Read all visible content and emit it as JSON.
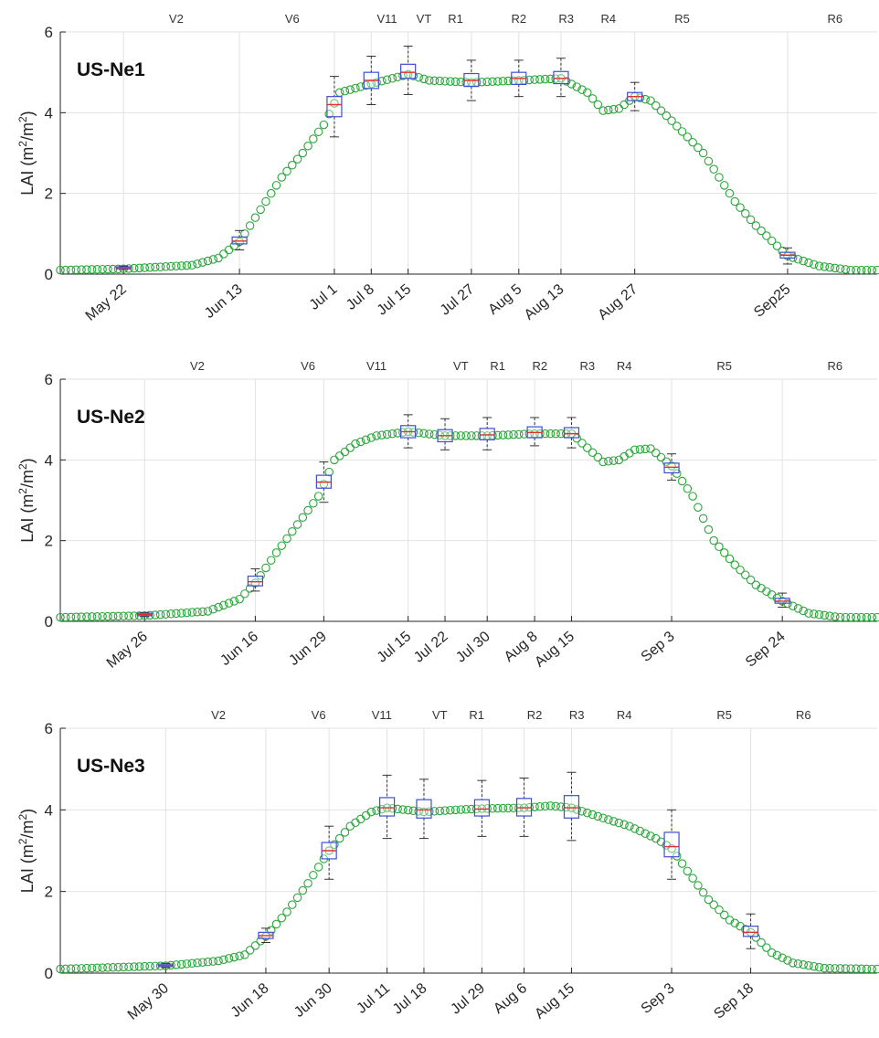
{
  "chart_data": [
    {
      "type": "scatter",
      "site_label": "US-Ne1",
      "ylabel_main": "LAI (m",
      "ylabel_sup1": "2",
      "ylabel_mid": "/m",
      "ylabel_sup2": "2",
      "ylabel_end": ")",
      "xlim": [
        130,
        285
      ],
      "ylim": [
        0,
        6
      ],
      "y_ticks": [
        "0",
        "2",
        "4",
        "6"
      ],
      "y_tick_values": [
        0,
        2,
        4,
        6
      ],
      "grid": true,
      "dates": [
        {
          "label": "May 22",
          "doy": 142
        },
        {
          "label": "Jun 13",
          "doy": 164
        },
        {
          "label": "Jul 1",
          "doy": 182
        },
        {
          "label": "Jul 8",
          "doy": 189
        },
        {
          "label": "Jul 15",
          "doy": 196
        },
        {
          "label": "Jul 27",
          "doy": 208
        },
        {
          "label": "Aug 5",
          "doy": 217
        },
        {
          "label": "Aug 13",
          "doy": 225
        },
        {
          "label": "Aug 27",
          "doy": 239
        },
        {
          "label": "Sep25",
          "doy": 268
        }
      ],
      "stages": [
        {
          "label": "V2",
          "doy": 152
        },
        {
          "label": "V6",
          "doy": 174
        },
        {
          "label": "V11",
          "doy": 192
        },
        {
          "label": "VT",
          "doy": 199
        },
        {
          "label": "R1",
          "doy": 205
        },
        {
          "label": "R2",
          "doy": 217
        },
        {
          "label": "R3",
          "doy": 226
        },
        {
          "label": "R4",
          "doy": 234
        },
        {
          "label": "R5",
          "doy": 248
        },
        {
          "label": "R6",
          "doy": 277
        }
      ],
      "curve": [
        [
          130,
          0.1
        ],
        [
          142,
          0.13
        ],
        [
          155,
          0.22
        ],
        [
          160,
          0.4
        ],
        [
          164,
          0.8
        ],
        [
          168,
          1.6
        ],
        [
          172,
          2.4
        ],
        [
          176,
          3.0
        ],
        [
          180,
          3.7
        ],
        [
          183,
          4.5
        ],
        [
          190,
          4.75
        ],
        [
          196,
          4.95
        ],
        [
          200,
          4.8
        ],
        [
          208,
          4.75
        ],
        [
          217,
          4.8
        ],
        [
          225,
          4.85
        ],
        [
          230,
          4.5
        ],
        [
          233,
          4.05
        ],
        [
          236,
          4.1
        ],
        [
          239,
          4.4
        ],
        [
          242,
          4.3
        ],
        [
          246,
          3.8
        ],
        [
          252,
          3.0
        ],
        [
          258,
          1.8
        ],
        [
          262,
          1.2
        ],
        [
          266,
          0.7
        ],
        [
          268,
          0.45
        ],
        [
          274,
          0.2
        ],
        [
          280,
          0.1
        ],
        [
          285,
          0.1
        ]
      ],
      "boxes": [
        {
          "doy": 142,
          "q1": 0.13,
          "median": 0.16,
          "q3": 0.18,
          "low": 0.12,
          "high": 0.2
        },
        {
          "doy": 164,
          "q1": 0.75,
          "median": 0.82,
          "q3": 0.92,
          "low": 0.6,
          "high": 1.08
        },
        {
          "doy": 182,
          "q1": 3.9,
          "median": 4.2,
          "q3": 4.4,
          "low": 3.4,
          "high": 4.9
        },
        {
          "doy": 189,
          "q1": 4.6,
          "median": 4.8,
          "q3": 5.0,
          "low": 4.2,
          "high": 5.4
        },
        {
          "doy": 196,
          "q1": 4.85,
          "median": 5.0,
          "q3": 5.2,
          "low": 4.45,
          "high": 5.65
        },
        {
          "doy": 208,
          "q1": 4.65,
          "median": 4.8,
          "q3": 4.97,
          "low": 4.3,
          "high": 5.3
        },
        {
          "doy": 217,
          "q1": 4.7,
          "median": 4.85,
          "q3": 5.0,
          "low": 4.4,
          "high": 5.3
        },
        {
          "doy": 225,
          "q1": 4.72,
          "median": 4.85,
          "q3": 5.02,
          "low": 4.4,
          "high": 5.35
        },
        {
          "doy": 239,
          "q1": 4.3,
          "median": 4.4,
          "q3": 4.5,
          "low": 4.05,
          "high": 4.75
        },
        {
          "doy": 268,
          "q1": 0.4,
          "median": 0.47,
          "q3": 0.54,
          "low": 0.25,
          "high": 0.65
        }
      ]
    },
    {
      "type": "scatter",
      "site_label": "US-Ne2",
      "ylabel_main": "LAI (m",
      "ylabel_sup1": "2",
      "ylabel_mid": "/m",
      "ylabel_sup2": "2",
      "ylabel_end": ")",
      "xlim": [
        130,
        285
      ],
      "ylim": [
        0,
        6
      ],
      "y_ticks": [
        "0",
        "2",
        "4",
        "6"
      ],
      "y_tick_values": [
        0,
        2,
        4,
        6
      ],
      "grid": true,
      "dates": [
        {
          "label": "May 26",
          "doy": 146
        },
        {
          "label": "Jun 16",
          "doy": 167
        },
        {
          "label": "Jun 29",
          "doy": 180
        },
        {
          "label": "Jul 15",
          "doy": 196
        },
        {
          "label": "Jul 22",
          "doy": 203
        },
        {
          "label": "Jul 30",
          "doy": 211
        },
        {
          "label": "Aug 8",
          "doy": 220
        },
        {
          "label": "Aug 15",
          "doy": 227
        },
        {
          "label": "Sep 3",
          "doy": 246
        },
        {
          "label": "Sep 24",
          "doy": 267
        }
      ],
      "stages": [
        {
          "label": "V2",
          "doy": 156
        },
        {
          "label": "V6",
          "doy": 177
        },
        {
          "label": "V11",
          "doy": 190
        },
        {
          "label": "VT",
          "doy": 206
        },
        {
          "label": "R1",
          "doy": 213
        },
        {
          "label": "R2",
          "doy": 221
        },
        {
          "label": "R3",
          "doy": 230
        },
        {
          "label": "R4",
          "doy": 237
        },
        {
          "label": "R5",
          "doy": 256
        },
        {
          "label": "R6",
          "doy": 277
        }
      ],
      "curve": [
        [
          130,
          0.1
        ],
        [
          146,
          0.14
        ],
        [
          158,
          0.25
        ],
        [
          164,
          0.55
        ],
        [
          167,
          0.95
        ],
        [
          171,
          1.7
        ],
        [
          175,
          2.4
        ],
        [
          179,
          3.1
        ],
        [
          182,
          4.0
        ],
        [
          186,
          4.4
        ],
        [
          190,
          4.6
        ],
        [
          196,
          4.7
        ],
        [
          203,
          4.6
        ],
        [
          211,
          4.6
        ],
        [
          220,
          4.65
        ],
        [
          227,
          4.65
        ],
        [
          230,
          4.3
        ],
        [
          233,
          3.95
        ],
        [
          236,
          4.0
        ],
        [
          239,
          4.25
        ],
        [
          242,
          4.28
        ],
        [
          246,
          3.85
        ],
        [
          250,
          3.1
        ],
        [
          254,
          2.0
        ],
        [
          258,
          1.4
        ],
        [
          262,
          0.9
        ],
        [
          267,
          0.5
        ],
        [
          272,
          0.2
        ],
        [
          278,
          0.1
        ],
        [
          285,
          0.1
        ]
      ],
      "boxes": [
        {
          "doy": 146,
          "q1": 0.14,
          "median": 0.17,
          "q3": 0.2,
          "low": 0.12,
          "high": 0.22
        },
        {
          "doy": 167,
          "q1": 0.88,
          "median": 0.98,
          "q3": 1.12,
          "low": 0.75,
          "high": 1.3
        },
        {
          "doy": 180,
          "q1": 3.3,
          "median": 3.45,
          "q3": 3.62,
          "low": 2.95,
          "high": 3.95
        },
        {
          "doy": 196,
          "q1": 4.55,
          "median": 4.7,
          "q3": 4.85,
          "low": 4.3,
          "high": 5.12
        },
        {
          "doy": 203,
          "q1": 4.45,
          "median": 4.6,
          "q3": 4.75,
          "low": 4.25,
          "high": 5.02
        },
        {
          "doy": 211,
          "q1": 4.5,
          "median": 4.62,
          "q3": 4.78,
          "low": 4.25,
          "high": 5.05
        },
        {
          "doy": 220,
          "q1": 4.55,
          "median": 4.68,
          "q3": 4.82,
          "low": 4.35,
          "high": 5.05
        },
        {
          "doy": 227,
          "q1": 4.55,
          "median": 4.65,
          "q3": 4.8,
          "low": 4.3,
          "high": 5.05
        },
        {
          "doy": 246,
          "q1": 3.68,
          "median": 3.82,
          "q3": 3.92,
          "low": 3.5,
          "high": 4.15
        },
        {
          "doy": 267,
          "q1": 0.45,
          "median": 0.5,
          "q3": 0.57,
          "low": 0.35,
          "high": 0.7
        }
      ]
    },
    {
      "type": "scatter",
      "site_label": "US-Ne3",
      "ylabel_main": "LAI (m",
      "ylabel_sup1": "2",
      "ylabel_mid": "/m",
      "ylabel_sup2": "2",
      "ylabel_end": ")",
      "xlim": [
        130,
        285
      ],
      "ylim": [
        0,
        6
      ],
      "y_ticks": [
        "0",
        "2",
        "4",
        "6"
      ],
      "y_tick_values": [
        0,
        2,
        4,
        6
      ],
      "grid": true,
      "dates": [
        {
          "label": "May 30",
          "doy": 150
        },
        {
          "label": "Jun 18",
          "doy": 169
        },
        {
          "label": "Jun 30",
          "doy": 181
        },
        {
          "label": "Jul 11",
          "doy": 192
        },
        {
          "label": "Jul 18",
          "doy": 199
        },
        {
          "label": "Jul 29",
          "doy": 210
        },
        {
          "label": "Aug 6",
          "doy": 218
        },
        {
          "label": "Aug 15",
          "doy": 227
        },
        {
          "label": "Sep 3",
          "doy": 246
        },
        {
          "label": "Sep 18",
          "doy": 261
        }
      ],
      "stages": [
        {
          "label": "V2",
          "doy": 160
        },
        {
          "label": "V6",
          "doy": 179
        },
        {
          "label": "V11",
          "doy": 191
        },
        {
          "label": "VT",
          "doy": 202
        },
        {
          "label": "R1",
          "doy": 209
        },
        {
          "label": "R2",
          "doy": 220
        },
        {
          "label": "R3",
          "doy": 228
        },
        {
          "label": "R4",
          "doy": 237
        },
        {
          "label": "R5",
          "doy": 256
        },
        {
          "label": "R6",
          "doy": 271
        }
      ],
      "curve": [
        [
          130,
          0.1
        ],
        [
          150,
          0.18
        ],
        [
          160,
          0.3
        ],
        [
          165,
          0.45
        ],
        [
          169,
          0.9
        ],
        [
          173,
          1.5
        ],
        [
          177,
          2.2
        ],
        [
          181,
          3.0
        ],
        [
          185,
          3.6
        ],
        [
          189,
          3.95
        ],
        [
          192,
          4.05
        ],
        [
          199,
          3.95
        ],
        [
          205,
          4.0
        ],
        [
          210,
          4.03
        ],
        [
          218,
          4.05
        ],
        [
          223,
          4.1
        ],
        [
          227,
          4.05
        ],
        [
          233,
          3.8
        ],
        [
          238,
          3.6
        ],
        [
          243,
          3.3
        ],
        [
          246,
          3.05
        ],
        [
          249,
          2.5
        ],
        [
          253,
          1.8
        ],
        [
          257,
          1.3
        ],
        [
          261,
          1.0
        ],
        [
          265,
          0.5
        ],
        [
          269,
          0.25
        ],
        [
          275,
          0.12
        ],
        [
          285,
          0.1
        ]
      ],
      "boxes": [
        {
          "doy": 150,
          "q1": 0.16,
          "median": 0.19,
          "q3": 0.22,
          "low": 0.14,
          "high": 0.24
        },
        {
          "doy": 169,
          "q1": 0.85,
          "median": 0.92,
          "q3": 1.0,
          "low": 0.75,
          "high": 1.1
        },
        {
          "doy": 181,
          "q1": 2.8,
          "median": 3.0,
          "q3": 3.2,
          "low": 2.3,
          "high": 3.6
        },
        {
          "doy": 192,
          "q1": 3.85,
          "median": 4.05,
          "q3": 4.3,
          "low": 3.3,
          "high": 4.85
        },
        {
          "doy": 199,
          "q1": 3.8,
          "median": 4.0,
          "q3": 4.25,
          "low": 3.3,
          "high": 4.75
        },
        {
          "doy": 210,
          "q1": 3.85,
          "median": 4.02,
          "q3": 4.25,
          "low": 3.35,
          "high": 4.72
        },
        {
          "doy": 218,
          "q1": 3.85,
          "median": 4.05,
          "q3": 4.28,
          "low": 3.35,
          "high": 4.78
        },
        {
          "doy": 227,
          "q1": 3.8,
          "median": 4.05,
          "q3": 4.35,
          "low": 3.25,
          "high": 4.92
        },
        {
          "doy": 246,
          "q1": 2.85,
          "median": 3.1,
          "q3": 3.45,
          "low": 2.3,
          "high": 4.0
        },
        {
          "doy": 261,
          "q1": 0.9,
          "median": 1.0,
          "q3": 1.15,
          "low": 0.6,
          "high": 1.45
        }
      ]
    }
  ]
}
